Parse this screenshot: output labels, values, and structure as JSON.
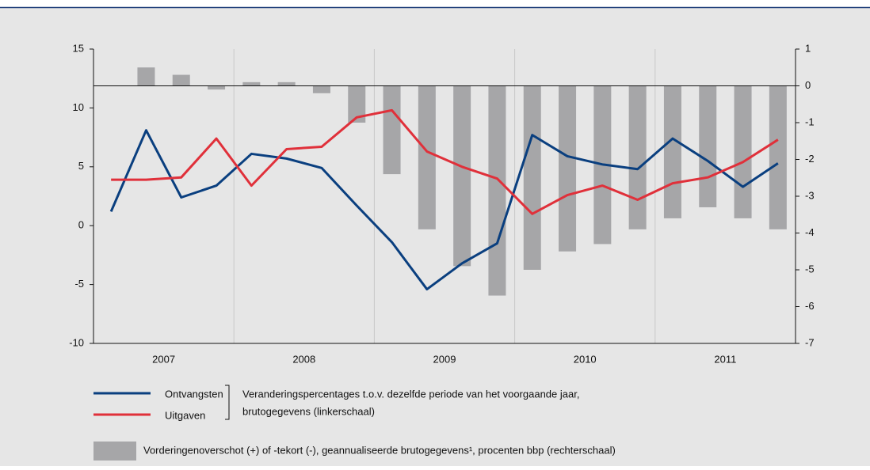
{
  "chart_data": {
    "type": "combo",
    "years": [
      "2007",
      "2008",
      "2009",
      "2010",
      "2011"
    ],
    "quarters_per_year": 4,
    "ylim": [
      -10,
      15
    ],
    "yticks": [
      15,
      10,
      5,
      0,
      -5,
      -10
    ],
    "y2lim": [
      -7,
      1
    ],
    "y2ticks": [
      1,
      0,
      -1,
      -2,
      -3,
      -4,
      -5,
      -6,
      -7
    ],
    "series": [
      {
        "name": "Vorderingenoverschot (+) of -tekort (-), geannualiseerde brutogegevens¹, procenten bbp (rechterschaal)",
        "type": "bar",
        "axis": "y2",
        "color": "#a6a6a8",
        "values": [
          0,
          0.5,
          0.3,
          -0.1,
          0.1,
          0.1,
          -0.2,
          -1.0,
          -2.4,
          -3.9,
          -4.9,
          -5.7,
          -5.0,
          -4.5,
          -4.3,
          -3.9,
          -3.6,
          -3.3,
          -3.6,
          -3.9
        ]
      },
      {
        "name": "Ontvangsten",
        "type": "line",
        "color": "#0a3f7f",
        "values": [
          1.2,
          8.1,
          2.4,
          3.4,
          6.1,
          5.7,
          4.9,
          1.7,
          -1.4,
          -5.4,
          -3.2,
          -1.5,
          7.7,
          5.9,
          5.2,
          4.8,
          7.4,
          5.5,
          3.3,
          5.3
        ]
      },
      {
        "name": "Uitgaven",
        "type": "line",
        "color": "#e0303a",
        "values": [
          3.9,
          3.9,
          4.1,
          7.4,
          3.4,
          6.5,
          6.7,
          9.2,
          9.8,
          6.3,
          5.0,
          4.0,
          1.0,
          2.6,
          3.4,
          2.2,
          3.6,
          4.1,
          5.4,
          7.3
        ]
      }
    ],
    "line_note": [
      "Veranderingspercentages t.o.v. dezelfde periode van het voorgaande jaar,",
      "brutogegevens (linkerschaal)"
    ]
  }
}
